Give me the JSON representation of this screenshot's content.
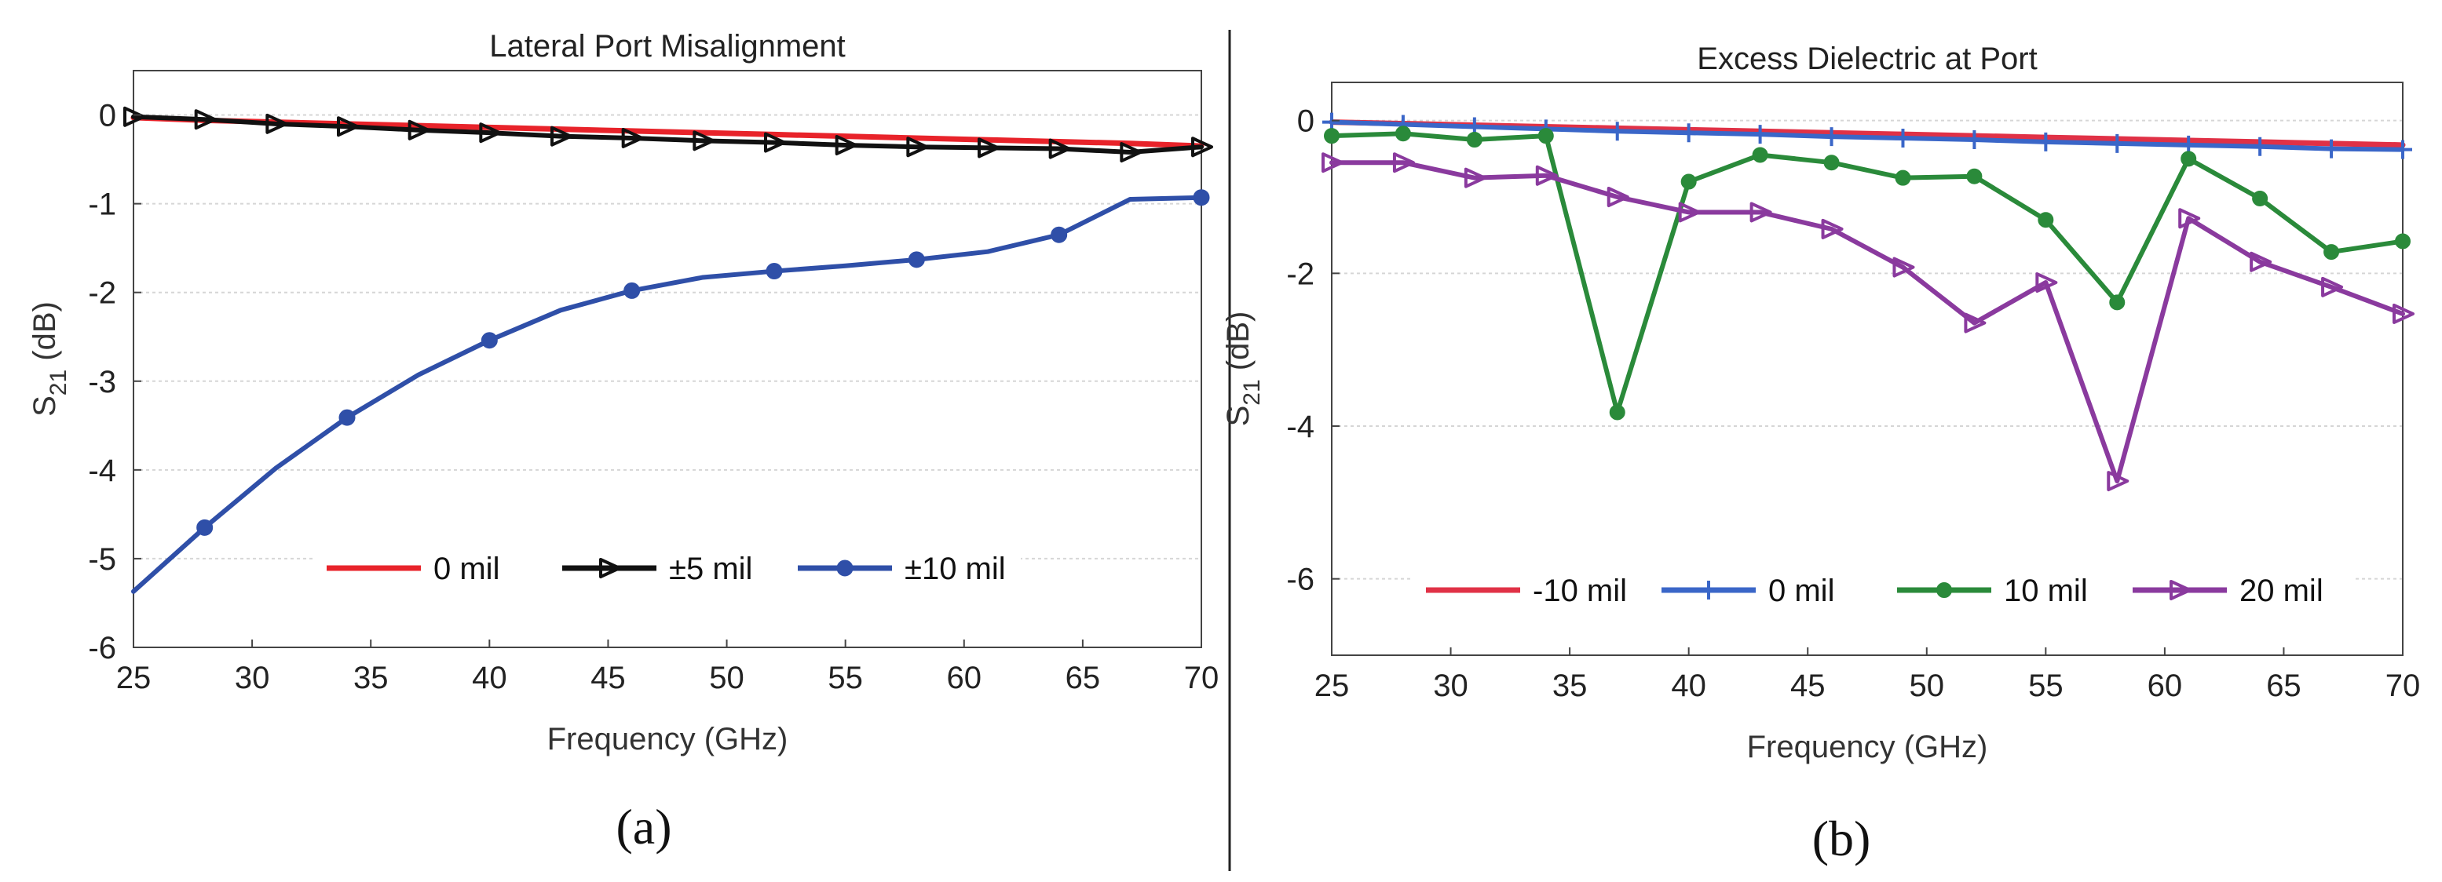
{
  "chart_data": [
    {
      "type": "line",
      "title": "Lateral Port Misalignment",
      "xlabel": "Frequency (GHz)",
      "ylabel_main": "S",
      "ylabel_sub": "21",
      "ylabel_unit": " (dB)",
      "xlim": [
        25,
        70
      ],
      "ylim": [
        -6,
        0.5
      ],
      "xticks": [
        25,
        30,
        35,
        40,
        45,
        50,
        55,
        60,
        65,
        70
      ],
      "yticks": [
        0,
        -1,
        -2,
        -3,
        -4,
        -5,
        -6
      ],
      "grid": true,
      "legend_placement": "bottom-right",
      "caption": "(a)",
      "series": [
        {
          "name": "0 mil",
          "color": "#e8232a",
          "marker": "none",
          "x": [
            25,
            28,
            31,
            34,
            37,
            40,
            43,
            46,
            49,
            52,
            55,
            58,
            61,
            64,
            67,
            70
          ],
          "y": [
            -0.03,
            -0.06,
            -0.08,
            -0.1,
            -0.12,
            -0.14,
            -0.16,
            -0.18,
            -0.2,
            -0.22,
            -0.24,
            -0.26,
            -0.28,
            -0.3,
            -0.32,
            -0.35
          ]
        },
        {
          "name": "±5 mil",
          "color": "#111111",
          "marker": "triangle-right",
          "x": [
            25,
            28,
            31,
            34,
            37,
            40,
            43,
            46,
            49,
            52,
            55,
            58,
            61,
            64,
            67,
            70
          ],
          "y": [
            -0.02,
            -0.05,
            -0.1,
            -0.13,
            -0.17,
            -0.2,
            -0.24,
            -0.26,
            -0.29,
            -0.31,
            -0.34,
            -0.36,
            -0.37,
            -0.38,
            -0.42,
            -0.36
          ]
        },
        {
          "name": "±10 mil",
          "color": "#2f4fa8",
          "marker": "circle",
          "x": [
            25,
            28,
            31,
            34,
            37,
            40,
            43,
            46,
            49,
            52,
            55,
            58,
            61,
            64,
            67,
            70
          ],
          "y": [
            -5.37,
            -4.65,
            -3.98,
            -3.41,
            -2.93,
            -2.54,
            -2.2,
            -1.98,
            -1.83,
            -1.76,
            -1.7,
            -1.63,
            -1.54,
            -1.35,
            -0.95,
            -0.93
          ]
        }
      ]
    },
    {
      "type": "line",
      "title": "Excess Dielectric at Port",
      "xlabel": "Frequency (GHz)",
      "ylabel_main": "S",
      "ylabel_sub": "21",
      "ylabel_unit": " (dB)",
      "xlim": [
        25,
        70
      ],
      "ylim": [
        -7,
        0.5
      ],
      "xticks": [
        25,
        30,
        35,
        40,
        45,
        50,
        55,
        60,
        65,
        70
      ],
      "yticks": [
        0,
        -2,
        -4,
        -6
      ],
      "grid": true,
      "legend_placement": "bottom",
      "caption": "(b)",
      "series": [
        {
          "name": "-10 mil",
          "color": "#e03146",
          "marker": "none",
          "x": [
            25,
            28,
            31,
            34,
            37,
            40,
            43,
            46,
            49,
            52,
            55,
            58,
            61,
            64,
            67,
            70
          ],
          "y": [
            -0.02,
            -0.04,
            -0.06,
            -0.08,
            -0.1,
            -0.12,
            -0.14,
            -0.16,
            -0.18,
            -0.2,
            -0.22,
            -0.24,
            -0.26,
            -0.28,
            -0.3,
            -0.32
          ]
        },
        {
          "name": "0 mil",
          "color": "#3a66c8",
          "marker": "plus",
          "x": [
            25,
            28,
            31,
            34,
            37,
            40,
            43,
            46,
            49,
            52,
            55,
            58,
            61,
            64,
            67,
            70
          ],
          "y": [
            -0.02,
            -0.05,
            -0.08,
            -0.11,
            -0.14,
            -0.16,
            -0.18,
            -0.21,
            -0.23,
            -0.25,
            -0.28,
            -0.3,
            -0.32,
            -0.34,
            -0.37,
            -0.38
          ]
        },
        {
          "name": "10 mil",
          "color": "#2a8a3a",
          "marker": "circle-filled",
          "x": [
            25,
            28,
            31,
            34,
            37,
            40,
            43,
            46,
            49,
            52,
            55,
            58,
            61,
            64,
            67,
            70
          ],
          "y": [
            -0.2,
            -0.17,
            -0.25,
            -0.2,
            -3.82,
            -0.8,
            -0.45,
            -0.55,
            -0.75,
            -0.73,
            -1.3,
            -2.38,
            -0.5,
            -1.02,
            -1.72,
            -1.58
          ]
        },
        {
          "name": "20 mil",
          "color": "#8a3a9e",
          "marker": "triangle-right",
          "x": [
            25,
            28,
            31,
            34,
            37,
            40,
            43,
            46,
            49,
            52,
            55,
            58,
            61,
            64,
            67,
            70
          ],
          "y": [
            -0.55,
            -0.55,
            -0.75,
            -0.72,
            -1.0,
            -1.2,
            -1.2,
            -1.42,
            -1.92,
            -2.65,
            -2.12,
            -4.72,
            -1.28,
            -1.85,
            -2.18,
            -2.53
          ]
        }
      ]
    }
  ]
}
